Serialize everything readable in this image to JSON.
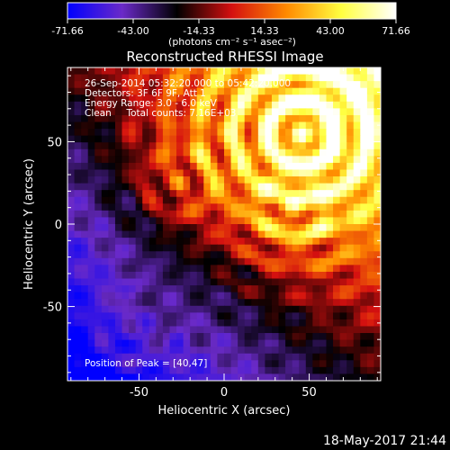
{
  "chart_data": {
    "type": "heatmap",
    "title": "Reconstructed RHESSI Image",
    "xlabel": "Heliocentric X (arcsec)",
    "ylabel": "Heliocentric Y (arcsec)",
    "xlim": [
      -92,
      92
    ],
    "ylim": [
      -95,
      95
    ],
    "x_ticks": [
      -50,
      0,
      50
    ],
    "y_ticks": [
      -50,
      0,
      50
    ],
    "colorbar": {
      "min": -71.66,
      "max": 71.66,
      "ticks": [
        "-71.66",
        "-43.00",
        "-14.33",
        "14.33",
        "43.00",
        "71.66"
      ],
      "units": "(photons cm⁻² s⁻¹ asec⁻²)",
      "colormap": [
        "#0000ff",
        "#6a2ac8",
        "#000000",
        "#d41010",
        "#ff8a00",
        "#ffff40",
        "#ffffff"
      ]
    },
    "annotations": [
      "26-Sep-2014 05:32:20.000 to 05:42:20.000",
      "Detectors: 3F 6F 9F, Att 1",
      "Energy Range: 3.0 - 6.0 keV",
      "Clean     Total counts: 7.16E+03"
    ],
    "peak_label": "Position of Peak = [40,47]",
    "peak": [
      40,
      47
    ],
    "sources": [
      {
        "x": 45,
        "y": 55,
        "flux": 71.66
      },
      {
        "x": 40,
        "y": 8,
        "flux": 35
      },
      {
        "x": -25,
        "y": 25,
        "flux": 30
      },
      {
        "x": -55,
        "y": -65,
        "flux": 20
      }
    ]
  },
  "footer": {
    "timestamp": "18-May-2017 21:44"
  }
}
